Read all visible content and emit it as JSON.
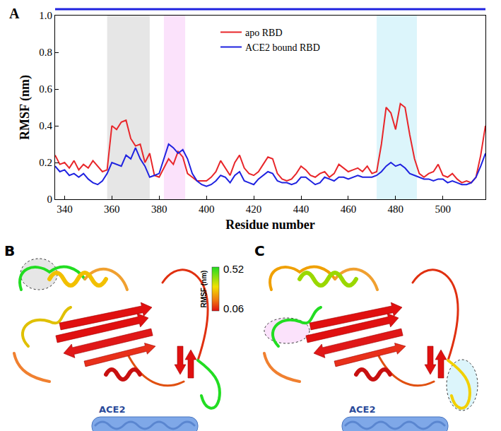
{
  "chart_data": {
    "type": "line",
    "panel_label": "A",
    "x_label": "Residue number",
    "y_label": "RMSF (nm)",
    "x": [
      336,
      338,
      340,
      342,
      344,
      346,
      348,
      350,
      352,
      354,
      356,
      358,
      360,
      362,
      364,
      366,
      368,
      370,
      372,
      374,
      376,
      378,
      380,
      382,
      384,
      386,
      388,
      390,
      392,
      394,
      396,
      398,
      400,
      402,
      404,
      406,
      408,
      410,
      412,
      414,
      416,
      418,
      420,
      422,
      424,
      426,
      428,
      430,
      432,
      434,
      436,
      438,
      440,
      442,
      444,
      446,
      448,
      450,
      452,
      454,
      456,
      458,
      460,
      462,
      464,
      466,
      468,
      470,
      472,
      474,
      476,
      478,
      480,
      482,
      484,
      486,
      488,
      490,
      492,
      494,
      496,
      498,
      500,
      502,
      504,
      506,
      508,
      510,
      512,
      514,
      516,
      518
    ],
    "series": [
      {
        "name": "apo RBD",
        "color": "#e8262a",
        "values": [
          0.24,
          0.19,
          0.2,
          0.17,
          0.21,
          0.16,
          0.19,
          0.17,
          0.21,
          0.18,
          0.15,
          0.16,
          0.4,
          0.38,
          0.42,
          0.43,
          0.33,
          0.29,
          0.3,
          0.2,
          0.25,
          0.13,
          0.12,
          0.17,
          0.22,
          0.19,
          0.26,
          0.23,
          0.14,
          0.12,
          0.1,
          0.1,
          0.1,
          0.12,
          0.15,
          0.21,
          0.17,
          0.13,
          0.2,
          0.24,
          0.17,
          0.14,
          0.13,
          0.15,
          0.19,
          0.23,
          0.22,
          0.14,
          0.11,
          0.1,
          0.11,
          0.14,
          0.18,
          0.16,
          0.13,
          0.12,
          0.14,
          0.15,
          0.12,
          0.14,
          0.19,
          0.17,
          0.15,
          0.16,
          0.17,
          0.15,
          0.18,
          0.14,
          0.15,
          0.3,
          0.5,
          0.47,
          0.38,
          0.52,
          0.5,
          0.35,
          0.22,
          0.14,
          0.12,
          0.14,
          0.15,
          0.19,
          0.13,
          0.12,
          0.14,
          0.11,
          0.09,
          0.1,
          0.09,
          0.12,
          0.24,
          0.4
        ]
      },
      {
        "name": "ACE2 bound RBD",
        "color": "#1f22e0",
        "values": [
          0.18,
          0.15,
          0.16,
          0.13,
          0.14,
          0.12,
          0.14,
          0.11,
          0.09,
          0.08,
          0.1,
          0.14,
          0.2,
          0.19,
          0.18,
          0.24,
          0.22,
          0.28,
          0.22,
          0.18,
          0.12,
          0.13,
          0.14,
          0.22,
          0.3,
          0.28,
          0.25,
          0.27,
          0.22,
          0.14,
          0.1,
          0.08,
          0.07,
          0.08,
          0.1,
          0.13,
          0.12,
          0.09,
          0.13,
          0.15,
          0.1,
          0.09,
          0.08,
          0.11,
          0.13,
          0.15,
          0.14,
          0.1,
          0.09,
          0.09,
          0.08,
          0.09,
          0.12,
          0.12,
          0.1,
          0.08,
          0.09,
          0.12,
          0.11,
          0.1,
          0.12,
          0.12,
          0.11,
          0.12,
          0.13,
          0.12,
          0.12,
          0.12,
          0.13,
          0.15,
          0.18,
          0.2,
          0.18,
          0.19,
          0.17,
          0.14,
          0.13,
          0.12,
          0.11,
          0.11,
          0.1,
          0.11,
          0.11,
          0.09,
          0.1,
          0.09,
          0.08,
          0.08,
          0.09,
          0.12,
          0.18,
          0.25
        ]
      }
    ],
    "highlighted_ranges": [
      {
        "x0": 358,
        "x1": 376,
        "color": "#e6e6e6"
      },
      {
        "x0": 382,
        "x1": 391,
        "color": "#fbe2fb"
      },
      {
        "x0": 472,
        "x1": 489,
        "color": "#dcf5fb"
      }
    ],
    "xlim": [
      336,
      518
    ],
    "xticks": [
      340,
      360,
      380,
      400,
      420,
      440,
      460,
      480,
      500
    ],
    "ylim": [
      0,
      1
    ],
    "yticks": [
      0,
      0.2,
      0.4,
      0.6,
      0.8,
      {
        "value": 1,
        "label": "1.0"
      }
    ],
    "grid": false,
    "legend": "top",
    "structure_panels": [
      {
        "label": "B",
        "partner": "ACE2"
      },
      {
        "label": "C",
        "partner": "ACE2"
      }
    ],
    "colorbar": {
      "title": "RMSF (nm)",
      "range": [
        0.06,
        0.52
      ]
    }
  }
}
